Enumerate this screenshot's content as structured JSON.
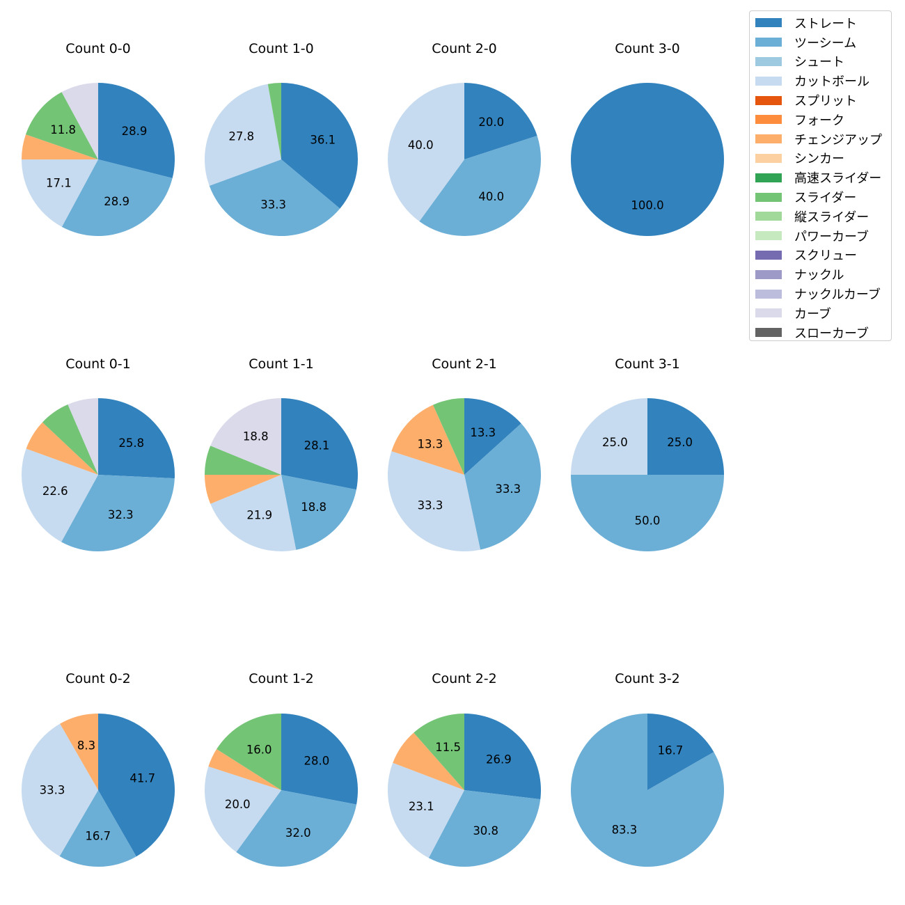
{
  "colors": {
    "ストレート": "#3182bd",
    "ツーシーム": "#6baed6",
    "シュート": "#9ecae1",
    "カットボール": "#c6dbef",
    "スプリット": "#e6550d",
    "フォーク": "#fd8d3c",
    "チェンジアップ": "#fdae6b",
    "シンカー": "#fdd0a2",
    "高速スライダー": "#31a354",
    "スライダー": "#74c476",
    "縦スライダー": "#a1d99b",
    "パワーカーブ": "#c7e9c0",
    "スクリュー": "#756bb1",
    "ナックル": "#9e9ac8",
    "ナックルカーブ": "#bcbddc",
    "カーブ": "#dadaeb",
    "スローカーブ": "#636363"
  },
  "legend": {
    "placement": "upper-right, outside plot grid",
    "items": [
      "ストレート",
      "ツーシーム",
      "シュート",
      "カットボール",
      "スプリット",
      "フォーク",
      "チェンジアップ",
      "シンカー",
      "高速スライダー",
      "スライダー",
      "縦スライダー",
      "パワーカーブ",
      "スクリュー",
      "ナックル",
      "ナックルカーブ",
      "カーブ",
      "スローカーブ"
    ]
  },
  "chart_data": [
    {
      "type": "pie",
      "title": "Count 0-0",
      "start_angle": 90,
      "direction": "clockwise",
      "slices": [
        {
          "name": "ストレート",
          "value": 28.9
        },
        {
          "name": "ツーシーム",
          "value": 28.9
        },
        {
          "name": "カットボール",
          "value": 17.1
        },
        {
          "name": "チェンジアップ",
          "value": 5.3
        },
        {
          "name": "スライダー",
          "value": 11.8
        },
        {
          "name": "カーブ",
          "value": 7.9
        }
      ],
      "labels": [
        "28.9",
        "28.9",
        "17.1",
        "",
        "11.8",
        ""
      ]
    },
    {
      "type": "pie",
      "title": "Count 1-0",
      "start_angle": 90,
      "direction": "clockwise",
      "slices": [
        {
          "name": "ストレート",
          "value": 36.1
        },
        {
          "name": "ツーシーム",
          "value": 33.3
        },
        {
          "name": "カットボール",
          "value": 27.8
        },
        {
          "name": "スライダー",
          "value": 2.8
        }
      ],
      "labels": [
        "36.1",
        "33.3",
        "27.8",
        ""
      ]
    },
    {
      "type": "pie",
      "title": "Count 2-0",
      "start_angle": 90,
      "direction": "clockwise",
      "slices": [
        {
          "name": "ストレート",
          "value": 20.0
        },
        {
          "name": "ツーシーム",
          "value": 40.0
        },
        {
          "name": "カットボール",
          "value": 40.0
        }
      ],
      "labels": [
        "20.0",
        "40.0",
        "40.0"
      ]
    },
    {
      "type": "pie",
      "title": "Count 3-0",
      "start_angle": 90,
      "direction": "clockwise",
      "slices": [
        {
          "name": "ストレート",
          "value": 100.0
        }
      ],
      "labels": [
        "100.0"
      ]
    },
    {
      "type": "pie",
      "title": "Count 0-1",
      "start_angle": 90,
      "direction": "clockwise",
      "slices": [
        {
          "name": "ストレート",
          "value": 25.8
        },
        {
          "name": "ツーシーム",
          "value": 32.3
        },
        {
          "name": "カットボール",
          "value": 22.6
        },
        {
          "name": "チェンジアップ",
          "value": 6.5
        },
        {
          "name": "スライダー",
          "value": 6.5
        },
        {
          "name": "カーブ",
          "value": 6.5
        }
      ],
      "labels": [
        "25.8",
        "32.3",
        "22.6",
        "",
        "",
        ""
      ]
    },
    {
      "type": "pie",
      "title": "Count 1-1",
      "start_angle": 90,
      "direction": "clockwise",
      "slices": [
        {
          "name": "ストレート",
          "value": 28.1
        },
        {
          "name": "ツーシーム",
          "value": 18.8
        },
        {
          "name": "カットボール",
          "value": 21.9
        },
        {
          "name": "チェンジアップ",
          "value": 6.2
        },
        {
          "name": "スライダー",
          "value": 6.2
        },
        {
          "name": "カーブ",
          "value": 18.8
        }
      ],
      "labels": [
        "28.1",
        "18.8",
        "21.9",
        "",
        "",
        "18.8"
      ]
    },
    {
      "type": "pie",
      "title": "Count 2-1",
      "start_angle": 90,
      "direction": "clockwise",
      "slices": [
        {
          "name": "ストレート",
          "value": 13.3
        },
        {
          "name": "ツーシーム",
          "value": 33.3
        },
        {
          "name": "カットボール",
          "value": 33.3
        },
        {
          "name": "チェンジアップ",
          "value": 13.3
        },
        {
          "name": "スライダー",
          "value": 6.7
        }
      ],
      "labels": [
        "13.3",
        "33.3",
        "33.3",
        "13.3",
        ""
      ]
    },
    {
      "type": "pie",
      "title": "Count 3-1",
      "start_angle": 90,
      "direction": "clockwise",
      "slices": [
        {
          "name": "ストレート",
          "value": 25.0
        },
        {
          "name": "ツーシーム",
          "value": 50.0
        },
        {
          "name": "カットボール",
          "value": 25.0
        }
      ],
      "labels": [
        "25.0",
        "50.0",
        "25.0"
      ]
    },
    {
      "type": "pie",
      "title": "Count 0-2",
      "start_angle": 90,
      "direction": "clockwise",
      "slices": [
        {
          "name": "ストレート",
          "value": 41.7
        },
        {
          "name": "ツーシーム",
          "value": 16.7
        },
        {
          "name": "カットボール",
          "value": 33.3
        },
        {
          "name": "チェンジアップ",
          "value": 8.3
        }
      ],
      "labels": [
        "41.7",
        "16.7",
        "33.3",
        "8.3"
      ]
    },
    {
      "type": "pie",
      "title": "Count 1-2",
      "start_angle": 90,
      "direction": "clockwise",
      "slices": [
        {
          "name": "ストレート",
          "value": 28.0
        },
        {
          "name": "ツーシーム",
          "value": 32.0
        },
        {
          "name": "カットボール",
          "value": 20.0
        },
        {
          "name": "チェンジアップ",
          "value": 4.0
        },
        {
          "name": "スライダー",
          "value": 16.0
        }
      ],
      "labels": [
        "28.0",
        "32.0",
        "20.0",
        "",
        "16.0"
      ]
    },
    {
      "type": "pie",
      "title": "Count 2-2",
      "start_angle": 90,
      "direction": "clockwise",
      "slices": [
        {
          "name": "ストレート",
          "value": 26.9
        },
        {
          "name": "ツーシーム",
          "value": 30.8
        },
        {
          "name": "カットボール",
          "value": 23.1
        },
        {
          "name": "チェンジアップ",
          "value": 7.7
        },
        {
          "name": "スライダー",
          "value": 11.5
        }
      ],
      "labels": [
        "26.9",
        "30.8",
        "23.1",
        "",
        "11.5"
      ]
    },
    {
      "type": "pie",
      "title": "Count 3-2",
      "start_angle": 90,
      "direction": "clockwise",
      "slices": [
        {
          "name": "ストレート",
          "value": 16.7
        },
        {
          "name": "ツーシーム",
          "value": 83.3
        }
      ],
      "labels": [
        "16.7",
        "83.3"
      ]
    }
  ]
}
